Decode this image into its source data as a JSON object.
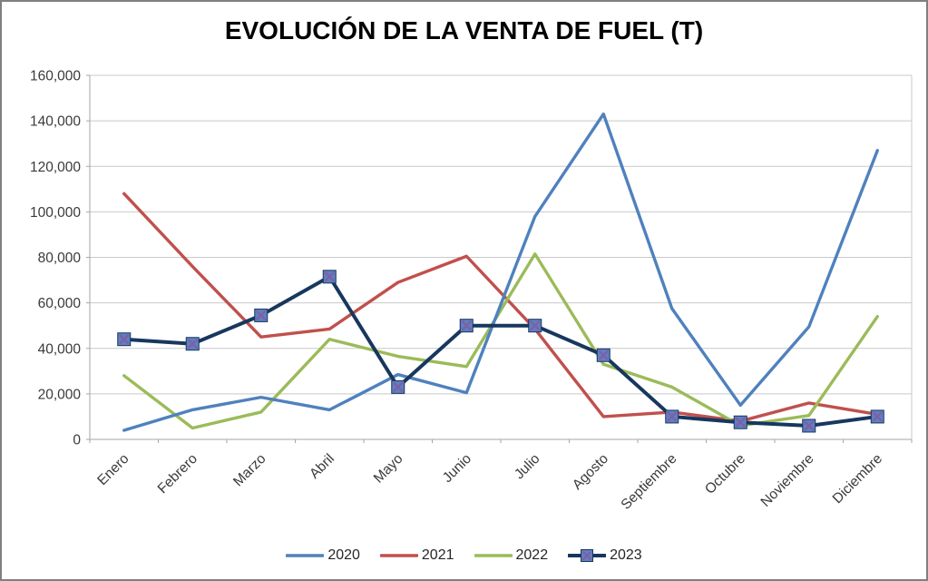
{
  "title": "EVOLUCIÓN DE LA VENTA DE FUEL (T)",
  "chart_data": {
    "type": "line",
    "title": "EVOLUCIÓN DE LA VENTA DE FUEL (T)",
    "xlabel": "",
    "ylabel": "",
    "grid": true,
    "legend_position": "bottom",
    "ylim": [
      0,
      160000
    ],
    "y_tick_step": 20000,
    "y_tick_labels": [
      "0",
      "20,000",
      "40,000",
      "60,000",
      "80,000",
      "100,000",
      "120,000",
      "140,000",
      "160,000"
    ],
    "categories": [
      "Enero",
      "Febrero",
      "Marzo",
      "Abril",
      "Mayo",
      "Junio",
      "Julio",
      "Agosto",
      "Septiembre",
      "Octubre",
      "Noviembre",
      "Diciembre"
    ],
    "series": [
      {
        "name": "2020",
        "color": "#4F81BD",
        "marker": false,
        "values": [
          4000,
          13000,
          18500,
          13000,
          28500,
          20500,
          98000,
          143000,
          57500,
          15000,
          49500,
          127000
        ]
      },
      {
        "name": "2021",
        "color": "#C0504D",
        "marker": false,
        "values": [
          108000,
          76000,
          45000,
          48500,
          69000,
          80500,
          48500,
          10000,
          12000,
          8000,
          16000,
          11000
        ]
      },
      {
        "name": "2022",
        "color": "#9BBB59",
        "marker": false,
        "values": [
          28000,
          5000,
          12000,
          44000,
          36500,
          32000,
          81500,
          33000,
          23000,
          6000,
          10500,
          54000
        ]
      },
      {
        "name": "2023",
        "color": "#17375E",
        "marker": true,
        "marker_fill": "#5F7FC0",
        "marker_x_color": "#7E5FA5",
        "values": [
          44000,
          42000,
          54500,
          71500,
          23000,
          50000,
          50000,
          37000,
          10000,
          7500,
          6000,
          10000
        ]
      }
    ],
    "colors": {
      "gridline": "#C9C9C9",
      "axis_line": "#A6A6A6",
      "label_text": "#3A3A3A"
    }
  }
}
